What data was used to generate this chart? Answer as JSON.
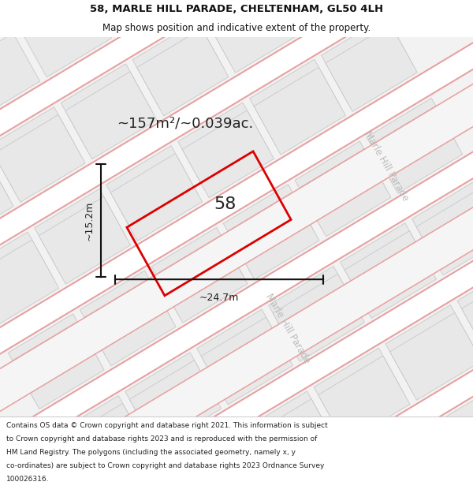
{
  "title_line1": "58, MARLE HILL PARADE, CHELTENHAM, GL50 4LH",
  "title_line2": "Map shows position and indicative extent of the property.",
  "area_text": "~157m²/~0.039ac.",
  "property_number": "58",
  "width_label": "~24.7m",
  "height_label": "~15.2m",
  "street_name": "Marle Hill Parade",
  "footer_lines": [
    "Contains OS data © Crown copyright and database right 2021. This information is subject",
    "to Crown copyright and database rights 2023 and is reproduced with the permission of",
    "HM Land Registry. The polygons (including the associated geometry, namely x, y",
    "co-ordinates) are subject to Crown copyright and database rights 2023 Ordnance Survey",
    "100026316."
  ],
  "map_bg": "#f2f2f2",
  "building_fill": "#e8e8e8",
  "building_edge": "#c8c8c8",
  "road_fill": "#ffffff",
  "road_stripe_color": "#e8a0a0",
  "plot_outline_color": "#dd0000",
  "dim_line_color": "#111111",
  "street_label_color": "#bbbbbb",
  "title_fontsize": 9.5,
  "subtitle_fontsize": 8.5,
  "area_fontsize": 13,
  "number_fontsize": 16,
  "dim_fontsize": 9,
  "street_fontsize": 8.5,
  "footer_fontsize": 6.5
}
